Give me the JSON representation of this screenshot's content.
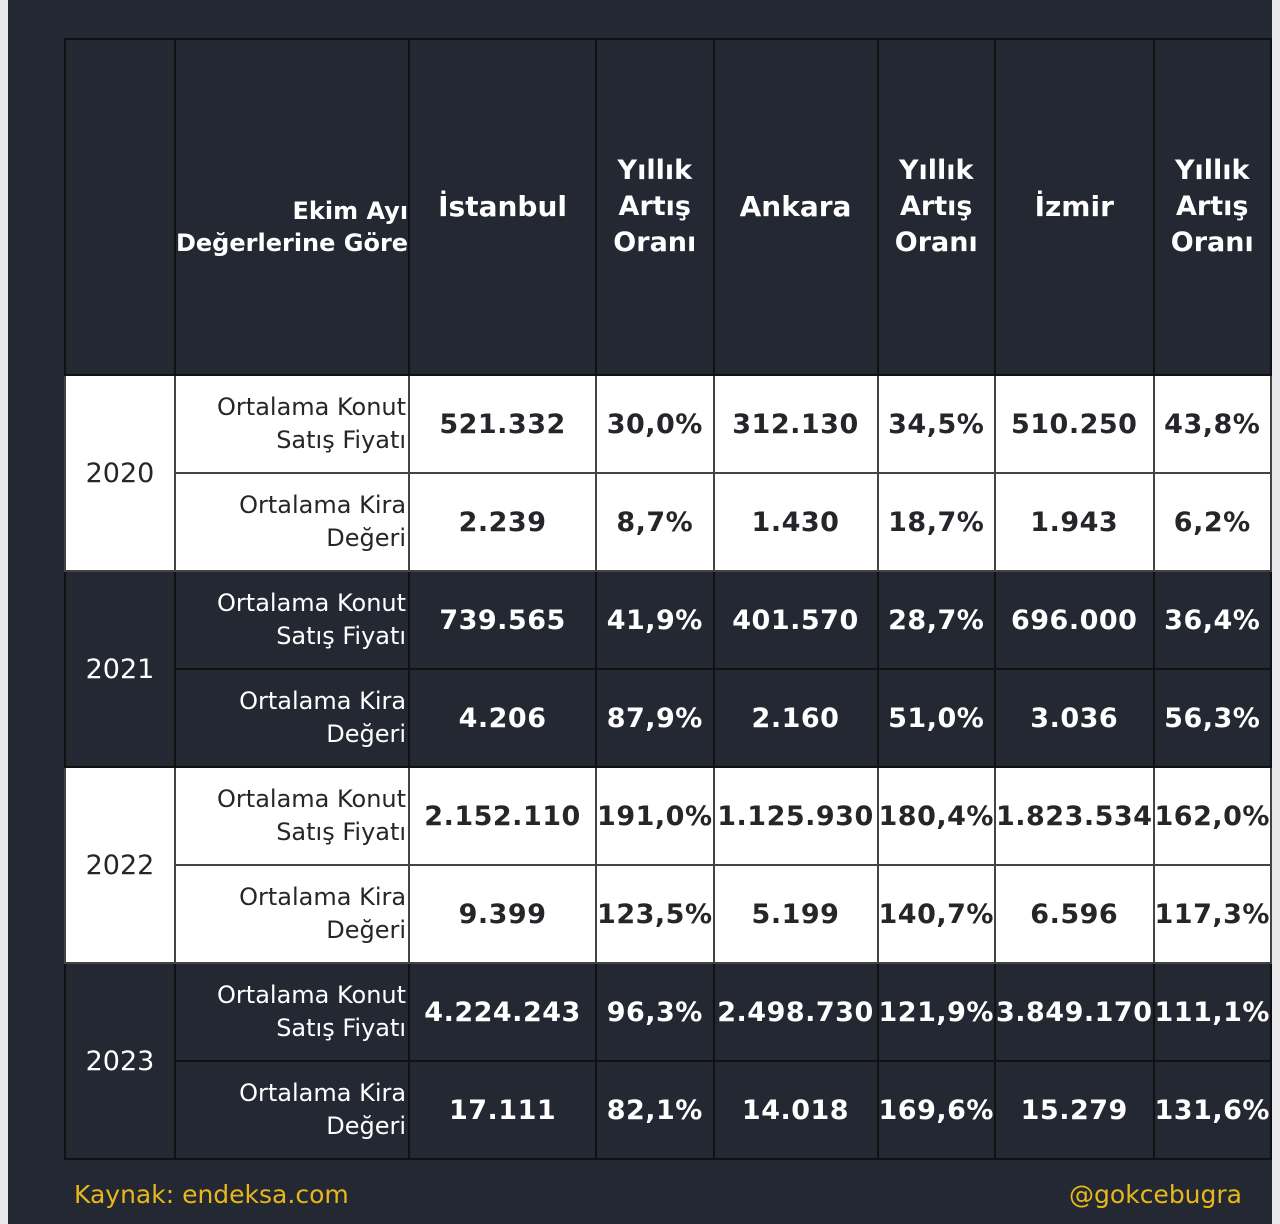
{
  "header": {
    "label_line1": "Ekim Ayı",
    "label_line2": "Değerlerine Göre",
    "city1": "İstanbul",
    "city2": "Ankara",
    "city3": "İzmir",
    "rate_line1": "Yıllık",
    "rate_line2": "Artış",
    "rate_line3": "Oranı"
  },
  "labels": {
    "sale_line1": "Ortalama Konut",
    "sale_line2": "Satış Fiyatı",
    "rent_line1": "Ortalama Kira",
    "rent_line2": "Değeri"
  },
  "rows": [
    {
      "year": "2020",
      "sale": [
        "521.332",
        "30,0%",
        "312.130",
        "34,5%",
        "510.250",
        "43,8%"
      ],
      "rent": [
        "2.239",
        "8,7%",
        "1.430",
        "18,7%",
        "1.943",
        "6,2%"
      ]
    },
    {
      "year": "2021",
      "sale": [
        "739.565",
        "41,9%",
        "401.570",
        "28,7%",
        "696.000",
        "36,4%"
      ],
      "rent": [
        "4.206",
        "87,9%",
        "2.160",
        "51,0%",
        "3.036",
        "56,3%"
      ]
    },
    {
      "year": "2022",
      "sale": [
        "2.152.110",
        "191,0%",
        "1.125.930",
        "180,4%",
        "1.823.534",
        "162,0%"
      ],
      "rent": [
        "9.399",
        "123,5%",
        "5.199",
        "140,7%",
        "6.596",
        "117,3%"
      ]
    },
    {
      "year": "2023",
      "sale": [
        "4.224.243",
        "96,3%",
        "2.498.730",
        "121,9%",
        "3.849.170",
        "111,1%"
      ],
      "rent": [
        "17.111",
        "82,1%",
        "14.018",
        "169,6%",
        "15.279",
        "131,6%"
      ]
    }
  ],
  "footer": {
    "source": "Kaynak: endeksa.com",
    "handle": "@gokcebugra"
  },
  "colors": {
    "background": "#232833",
    "light_row": "#ffffff",
    "footer_text": "#e8b71a"
  }
}
